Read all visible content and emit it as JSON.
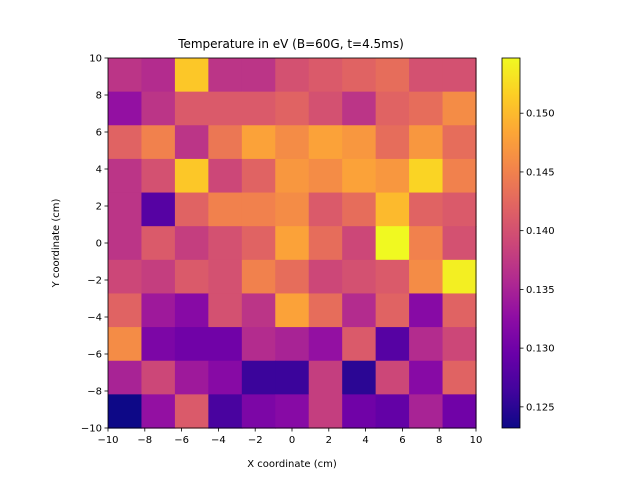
{
  "chart_data": {
    "type": "heatmap",
    "title": "Temperature in eV (B=60G, t=4.5ms)",
    "xlabel": "X coordinate (cm)",
    "ylabel": "Y coordinate (cm)",
    "xlim": [
      -10,
      10
    ],
    "ylim": [
      -10,
      10
    ],
    "xticks": [
      -10,
      -8,
      -6,
      -4,
      -2,
      0,
      2,
      4,
      6,
      8,
      10
    ],
    "yticks": [
      -10,
      -8,
      -6,
      -4,
      -2,
      0,
      2,
      4,
      6,
      8,
      10
    ],
    "xtick_labels": [
      "−10",
      "−8",
      "−6",
      "−4",
      "−2",
      "0",
      "2",
      "4",
      "6",
      "8",
      "10"
    ],
    "ytick_labels": [
      "−10",
      "−8",
      "−6",
      "−4",
      "−2",
      "0",
      "2",
      "4",
      "6",
      "8",
      "10"
    ],
    "colormap": "plasma",
    "vmin": 0.1232,
    "vmax": 0.1547,
    "colorbar_ticks": [
      0.125,
      0.13,
      0.135,
      0.14,
      0.145,
      0.15
    ],
    "colorbar_tick_labels": [
      "0.125",
      "0.130",
      "0.135",
      "0.140",
      "0.145",
      "0.150"
    ],
    "row_order": "top_to_bottom",
    "grid": [
      [
        0.137,
        0.136,
        0.151,
        0.137,
        0.137,
        0.14,
        0.141,
        0.142,
        0.143,
        0.14,
        0.14
      ],
      [
        0.133,
        0.137,
        0.141,
        0.141,
        0.141,
        0.142,
        0.14,
        0.137,
        0.142,
        0.143,
        0.146
      ],
      [
        0.142,
        0.145,
        0.137,
        0.144,
        0.148,
        0.146,
        0.148,
        0.147,
        0.143,
        0.147,
        0.143
      ],
      [
        0.137,
        0.14,
        0.151,
        0.139,
        0.142,
        0.147,
        0.146,
        0.148,
        0.147,
        0.152,
        0.145
      ],
      [
        0.137,
        0.128,
        0.142,
        0.145,
        0.145,
        0.146,
        0.141,
        0.143,
        0.15,
        0.142,
        0.141
      ],
      [
        0.137,
        0.141,
        0.138,
        0.14,
        0.142,
        0.148,
        0.143,
        0.139,
        0.155,
        0.145,
        0.14
      ],
      [
        0.139,
        0.138,
        0.141,
        0.14,
        0.145,
        0.143,
        0.139,
        0.14,
        0.141,
        0.146,
        0.154
      ],
      [
        0.142,
        0.134,
        0.132,
        0.14,
        0.137,
        0.148,
        0.143,
        0.136,
        0.142,
        0.132,
        0.142
      ],
      [
        0.146,
        0.131,
        0.13,
        0.13,
        0.136,
        0.135,
        0.133,
        0.141,
        0.128,
        0.136,
        0.139
      ],
      [
        0.135,
        0.139,
        0.134,
        0.132,
        0.126,
        0.126,
        0.138,
        0.125,
        0.139,
        0.132,
        0.142
      ],
      [
        0.123,
        0.133,
        0.141,
        0.127,
        0.131,
        0.132,
        0.138,
        0.13,
        0.129,
        0.135,
        0.13
      ]
    ]
  }
}
